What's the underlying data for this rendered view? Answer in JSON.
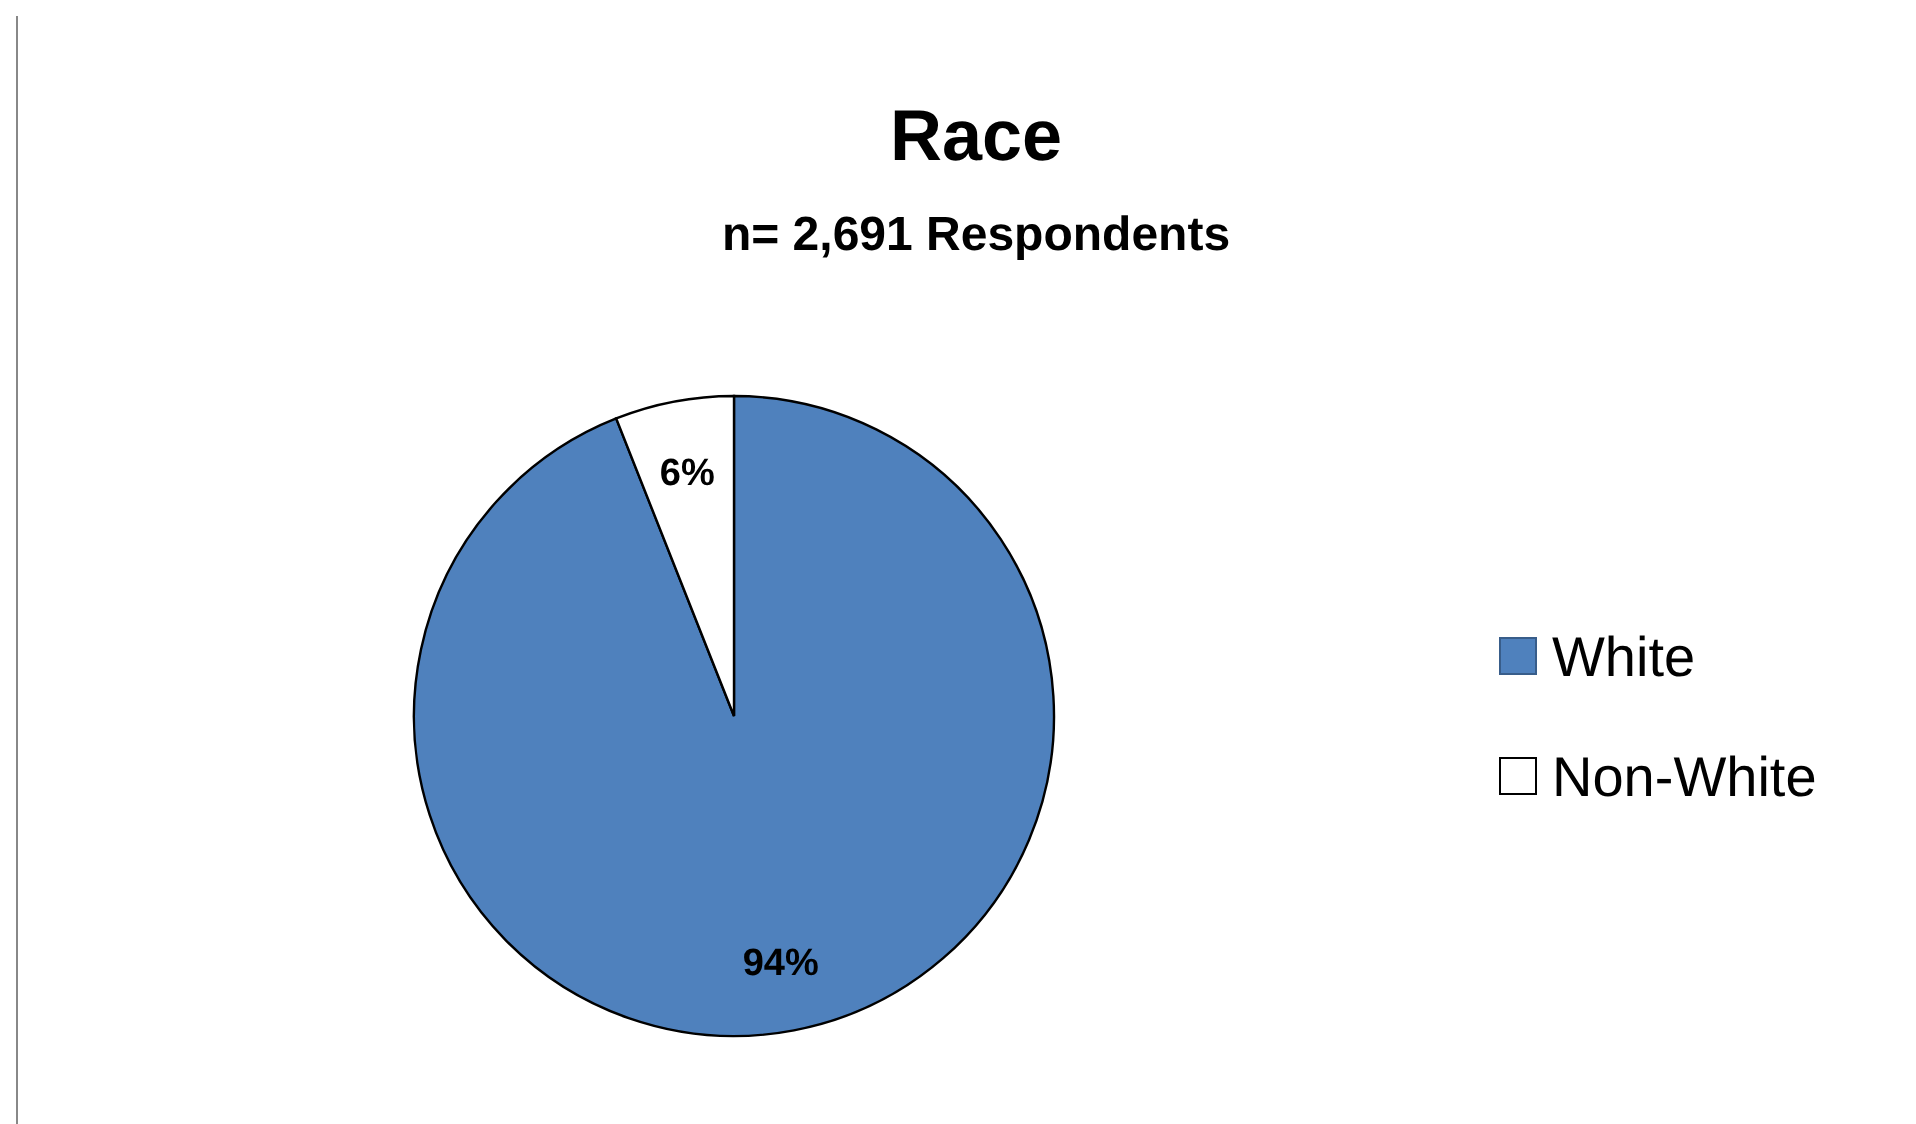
{
  "chart_data": {
    "type": "pie",
    "title": "Race",
    "subtitle": "n= 2,691 Respondents",
    "categories": [
      "White",
      "Non-White"
    ],
    "values": [
      94,
      6
    ],
    "value_labels": [
      "94%",
      "6%"
    ],
    "colors": [
      "#4f81bd",
      "#ffffff"
    ],
    "legend": "right"
  }
}
